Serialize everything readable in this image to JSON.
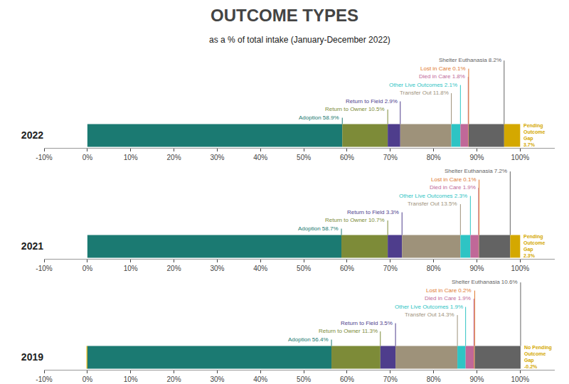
{
  "chart_data": {
    "type": "bar",
    "orientation": "horizontal",
    "stacked": true,
    "title": "OUTCOME TYPES",
    "subtitle": "as a % of total intake (January-December 2022)",
    "categories": [
      "2022",
      "2021",
      "2019"
    ],
    "series": [
      {
        "name": "Adoption",
        "color": "#1b7a72",
        "values": [
          58.9,
          58.7,
          56.4
        ],
        "value_labels": [
          "Adoption 58.9%",
          "Adoption 58.7%",
          "Adoption 56.4%"
        ]
      },
      {
        "name": "Return to Owner",
        "color": "#7d8b38",
        "values": [
          10.5,
          10.7,
          11.3
        ],
        "value_labels": [
          "Return to Owner 10.5%",
          "Return to Owner 10.7%",
          "Return to Owner 11.3%"
        ]
      },
      {
        "name": "Return to Field",
        "color": "#4e3d8c",
        "values": [
          2.9,
          3.3,
          3.5
        ],
        "value_labels": [
          "Return to Field 2.9%",
          "Return to Field 3.3%",
          "Return to Field 3.5%"
        ]
      },
      {
        "name": "Transfer Out",
        "color": "#9e927a",
        "values": [
          11.8,
          13.5,
          14.3
        ],
        "value_labels": [
          "Transfer Out 11.8%",
          "Transfer Out 13.5%",
          "Transfer Out 14.3%"
        ]
      },
      {
        "name": "Other Live Outcomes",
        "color": "#2ec4c4",
        "values": [
          2.1,
          2.3,
          1.9
        ],
        "value_labels": [
          "Other Live Outcomes 2.1%",
          "Other Live Outcomes 2.3%",
          "Other Live Outcomes 1.9%"
        ]
      },
      {
        "name": "Died in Care",
        "color": "#c06898",
        "values": [
          1.8,
          1.9,
          1.9
        ],
        "value_labels": [
          "Died in Care 1.8%",
          "Died in Care 1.9%",
          "Died in Care 1.9%"
        ]
      },
      {
        "name": "Lost in Care",
        "color": "#e07830",
        "values": [
          0.1,
          0.1,
          0.2
        ],
        "value_labels": [
          "Lost in Care 0.1%",
          "Lost in Care 0.1%",
          "Lost in Care 0.2%"
        ]
      },
      {
        "name": "Shelter Euthanasia",
        "color": "#636363",
        "values": [
          8.2,
          7.2,
          10.6
        ],
        "value_labels": [
          "Shelter Euthanasia 8.2%",
          "Shelter Euthanasia 7.2%",
          "Shelter Euthanasia 10.6%"
        ]
      },
      {
        "name": "Pending Outcome Gap",
        "color": "#d4a800",
        "values": [
          3.7,
          2.3,
          -0.2
        ],
        "value_labels": [
          "Pending\nOutcome\nGap\n3.7%",
          "Pending\nOutcome\nGap\n2.3%",
          "No Pending\nOutcome\nGap\n-0.2%"
        ]
      }
    ],
    "xlim": [
      -10,
      108
    ],
    "xticks": [
      {
        "value": -10,
        "label": "-10%"
      },
      {
        "value": 0,
        "label": "0%"
      },
      {
        "value": 10,
        "label": "10%"
      },
      {
        "value": 20,
        "label": "20%"
      },
      {
        "value": 30,
        "label": "30%"
      },
      {
        "value": 40,
        "label": "40%"
      },
      {
        "value": 50,
        "label": "50%"
      },
      {
        "value": 60,
        "label": "60%"
      },
      {
        "value": 70,
        "label": "70%"
      },
      {
        "value": 80,
        "label": "80%"
      },
      {
        "value": 90,
        "label": "90%"
      },
      {
        "value": 100,
        "label": "100%"
      }
    ],
    "grid": false,
    "data_labels": true
  }
}
